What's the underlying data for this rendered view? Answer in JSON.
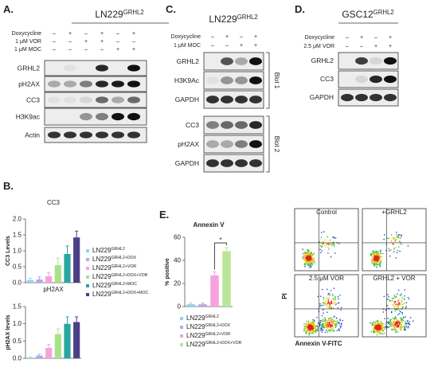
{
  "panel_a": {
    "label": "A.",
    "title": {
      "base": "LN229",
      "sup": "GRHL2"
    },
    "treatments": [
      {
        "name": "Doxycycline",
        "signs": [
          "–",
          "+",
          "–",
          "+",
          "–",
          "+"
        ]
      },
      {
        "name": "1 μM VOR",
        "signs": [
          "–",
          "–",
          "+",
          "+",
          "–",
          "–"
        ]
      },
      {
        "name": "1 μM MOC",
        "signs": [
          "–",
          "–",
          "–",
          "–",
          "+",
          "+"
        ]
      }
    ],
    "blots": [
      "GRHL2",
      "pH2AX",
      "CC3",
      "H3K9ac",
      "Actin"
    ]
  },
  "panel_c": {
    "label": "C.",
    "title": {
      "base": "LN229",
      "sup": "GRHL2"
    },
    "treatments": [
      {
        "name": "Doxycycline",
        "signs": [
          "–",
          "+",
          "–",
          "+"
        ]
      },
      {
        "name": "1 μM MOC",
        "signs": [
          "–",
          "–",
          "+",
          "+"
        ]
      }
    ],
    "blot_groups": [
      {
        "name": "Blot 1",
        "blots": [
          "GRHL2",
          "H3K9Ac",
          "GAPDH"
        ]
      },
      {
        "name": "Blot 2",
        "blots": [
          "CC3",
          "pH2AX",
          "GAPDH"
        ]
      }
    ]
  },
  "panel_d": {
    "label": "D.",
    "title": {
      "base": "GSC12",
      "sup": "GRHL2"
    },
    "treatments": [
      {
        "name": "Doxycycline",
        "signs": [
          "–",
          "+",
          "–",
          "+"
        ]
      },
      {
        "name": "2.5 μM VOR",
        "signs": [
          "–",
          "–",
          "+",
          "+"
        ]
      }
    ],
    "blots": [
      "GRHL2",
      "CC3",
      "GAPDH"
    ]
  },
  "panel_b": {
    "label": "B.",
    "legend": [
      {
        "base": "LN229",
        "sup": "GRHL2"
      },
      {
        "base": "LN229",
        "sup": "GRHL2+DOX"
      },
      {
        "base": "LN229",
        "sup": "GRHL2+VOR"
      },
      {
        "base": "LN229",
        "sup": "GRHL2+DOX+VOR"
      },
      {
        "base": "LN229",
        "sup": "GRHL2+MOC"
      },
      {
        "base": "LN229",
        "sup": "GRHL2+DOX+MOC"
      }
    ]
  },
  "panel_e": {
    "label": "E.",
    "significance": "*",
    "legend": [
      {
        "base": "LN229",
        "sup": "GRHL2"
      },
      {
        "base": "LN229",
        "sup": "GRHL2+DOX"
      },
      {
        "base": "LN229",
        "sup": "GRHL2+VOR"
      },
      {
        "base": "LN229",
        "sup": "GRHL2+DOX+VOR"
      }
    ]
  },
  "flow": {
    "panels": [
      "Control",
      "+GRHL2",
      "2.5 μM VOR",
      "GRHL2 + VOR"
    ],
    "y_label": "PI",
    "x_label": "Annexin V-FITC"
  },
  "chart_data": [
    {
      "type": "bar",
      "title": "CC3",
      "ylabel": "CC3 Levels",
      "ylim": [
        0,
        2
      ],
      "yticks": [
        {
          "value": 0,
          "label": "0.0"
        },
        {
          "value": 0.5,
          "label": "0.5"
        },
        {
          "value": 1,
          "label": "1.0"
        },
        {
          "value": 1.5,
          "label": "1.5"
        },
        {
          "value": 2,
          "label": "2.0"
        }
      ],
      "values": [
        0.08,
        0.1,
        0.2,
        0.55,
        0.9,
        1.42
      ],
      "errors": [
        0.05,
        0.08,
        0.12,
        0.22,
        0.25,
        0.2
      ],
      "colors": [
        "#8fd3f0",
        "#b7a9e6",
        "#f5a3dc",
        "#a6e38a",
        "#2aa6a0",
        "#4b3f86"
      ]
    },
    {
      "type": "bar",
      "title": "pH2AX",
      "ylabel": "pH2AX levels",
      "ylim": [
        0,
        1.5
      ],
      "yticks": [
        {
          "value": 0,
          "label": "0.0"
        },
        {
          "value": 0.5,
          "label": "0.5"
        },
        {
          "value": 1,
          "label": "1.0"
        },
        {
          "value": 1.5,
          "label": "1.5"
        }
      ],
      "values": [
        0.02,
        0.08,
        0.3,
        0.7,
        1.0,
        1.05
      ],
      "errors": [
        0.02,
        0.04,
        0.1,
        0.15,
        0.2,
        0.15
      ],
      "colors": [
        "#8fd3f0",
        "#b7a9e6",
        "#f5a3dc",
        "#a6e38a",
        "#2aa6a0",
        "#4b3f86"
      ]
    },
    {
      "type": "bar",
      "title": "Annexin V",
      "ylabel": "% positive",
      "ylim": [
        0,
        60
      ],
      "yticks": [
        0,
        20,
        40,
        60
      ],
      "values": [
        2,
        2,
        27,
        48
      ],
      "errors": [
        1,
        1,
        3,
        3
      ],
      "colors": [
        "#8fd3f0",
        "#b7a9e6",
        "#f5a3dc",
        "#b9e79a"
      ]
    }
  ]
}
